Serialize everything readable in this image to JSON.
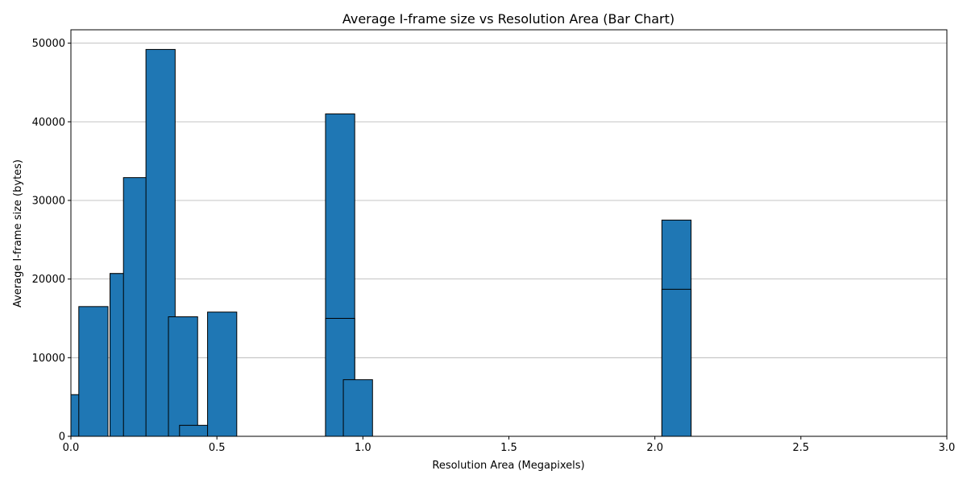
{
  "chart_data": {
    "type": "bar",
    "title": "Average I-frame size vs Resolution Area (Bar Chart)",
    "xlabel": "Resolution Area (Megapixels)",
    "ylabel": "Average I-frame size (bytes)",
    "xlim": [
      0,
      3.0
    ],
    "ylim": [
      0,
      51700
    ],
    "xticks": [
      0.0,
      0.5,
      1.0,
      1.5,
      2.0,
      2.5,
      3.0
    ],
    "xtick_labels": [
      "0.0",
      "0.5",
      "1.0",
      "1.5",
      "2.0",
      "2.5",
      "3.0"
    ],
    "yticks": [
      0,
      10000,
      20000,
      30000,
      40000,
      50000
    ],
    "ytick_labels": [
      "0",
      "10000",
      "20000",
      "30000",
      "40000",
      "50000"
    ],
    "grid": "y",
    "bar_width": 0.1,
    "bar_color": "#1f77b4",
    "edge_color": "#000000",
    "x": [
      0.0,
      0.077,
      0.184,
      0.184,
      0.23,
      0.307,
      0.384,
      0.422,
      0.518,
      0.922,
      0.922,
      0.983,
      2.074,
      2.074
    ],
    "values": [
      5300,
      16500,
      20700,
      20700,
      32900,
      49200,
      15200,
      1400,
      15800,
      41000,
      15000,
      7200,
      27500,
      18700
    ]
  }
}
